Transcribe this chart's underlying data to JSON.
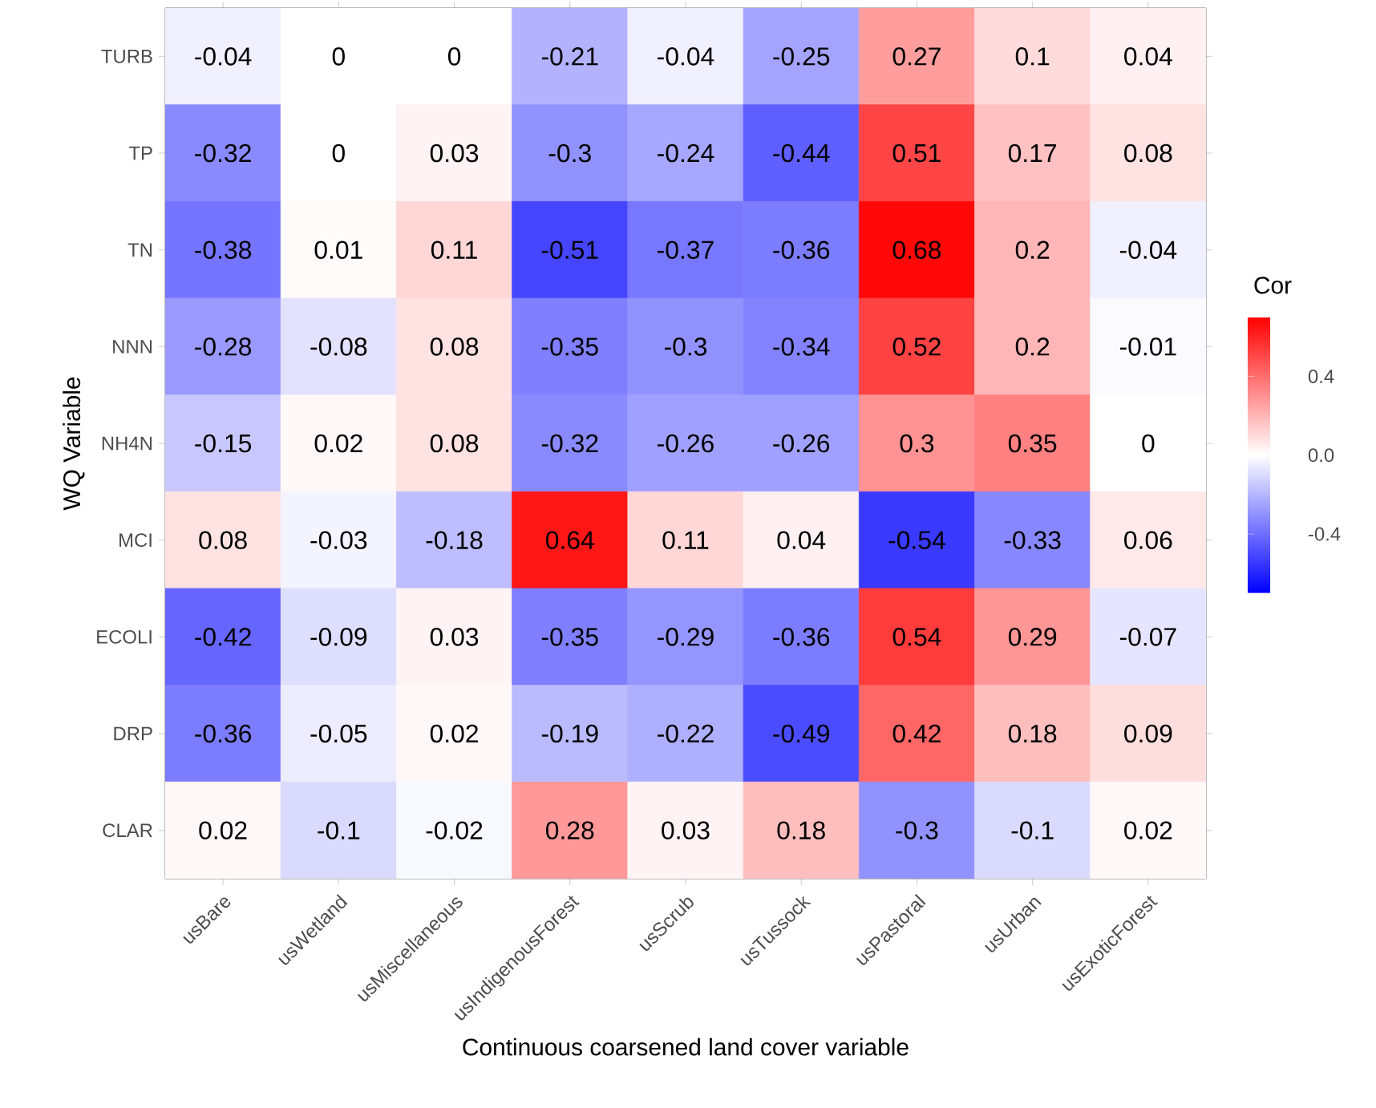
{
  "chart_data": {
    "type": "heatmap",
    "xlabel": "Continuous coarsened land cover variable",
    "ylabel": "WQ Variable",
    "clabel": "Cor",
    "categories": [
      "usBare",
      "usWetland",
      "usMiscellaneous",
      "usIndigenousForest",
      "usScrub",
      "usTussock",
      "usPastoral",
      "usUrban",
      "usExoticForest"
    ],
    "y_categories": [
      "TURB",
      "TP",
      "TN",
      "NNN",
      "NH4N",
      "MCI",
      "ECOLI",
      "DRP",
      "CLAR"
    ],
    "cells": [
      [
        -0.04,
        0,
        0,
        -0.21,
        -0.04,
        -0.25,
        0.27,
        0.1,
        0.04
      ],
      [
        -0.32,
        0,
        0.03,
        -0.3,
        -0.24,
        -0.44,
        0.51,
        0.17,
        0.08
      ],
      [
        -0.38,
        0.01,
        0.11,
        -0.51,
        -0.37,
        -0.36,
        0.68,
        0.2,
        -0.04
      ],
      [
        -0.28,
        -0.08,
        0.08,
        -0.35,
        -0.3,
        -0.34,
        0.52,
        0.2,
        -0.01
      ],
      [
        -0.15,
        0.02,
        0.08,
        -0.32,
        -0.26,
        -0.26,
        0.3,
        0.35,
        0
      ],
      [
        0.08,
        -0.03,
        -0.18,
        0.64,
        0.11,
        0.04,
        -0.54,
        -0.33,
        0.06
      ],
      [
        -0.42,
        -0.09,
        0.03,
        -0.35,
        -0.29,
        -0.36,
        0.54,
        0.29,
        -0.07
      ],
      [
        -0.36,
        -0.05,
        0.02,
        -0.19,
        -0.22,
        -0.49,
        0.42,
        0.18,
        0.09
      ],
      [
        0.02,
        -0.1,
        -0.02,
        0.28,
        0.03,
        0.18,
        -0.3,
        -0.1,
        0.02
      ]
    ],
    "data_labels": true,
    "clim": [
      -0.7,
      0.7
    ],
    "cticks": [
      -0.4,
      {
        "value": 0,
        "label": "0.0"
      },
      0.4
    ]
  }
}
